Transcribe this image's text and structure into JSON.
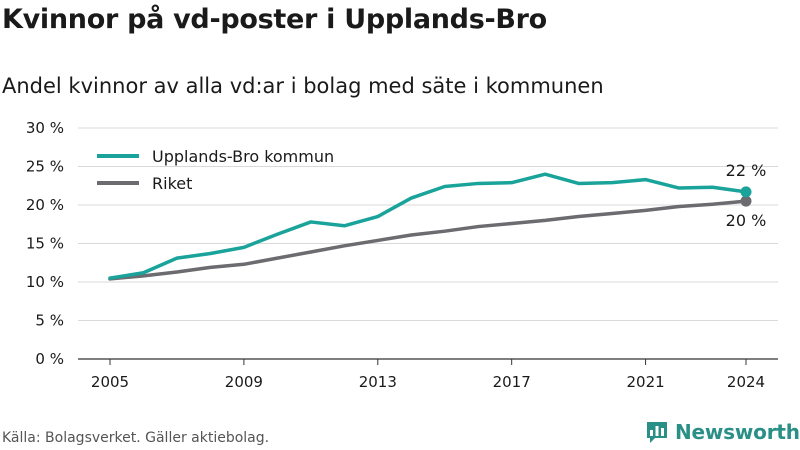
{
  "title": "Kvinnor på vd-poster i Upplands-Bro",
  "subtitle": "Andel kvinnor av alla vd:ar i bolag med säte i kommunen",
  "source": "Källa: Bolagsverket. Gäller aktiebolag.",
  "logo": {
    "text": "Newsworthy",
    "icon": "bar-chart-icon",
    "color": "#2a8f86"
  },
  "chart_data": {
    "type": "line",
    "x": [
      2005,
      2006,
      2007,
      2008,
      2009,
      2010,
      2011,
      2012,
      2013,
      2014,
      2015,
      2016,
      2017,
      2018,
      2019,
      2020,
      2021,
      2022,
      2023,
      2024
    ],
    "series": [
      {
        "name": "Upplands-Bro kommun",
        "color": "#1aa39a",
        "values": [
          10.5,
          11.2,
          13.1,
          13.7,
          14.5,
          16.2,
          17.8,
          17.3,
          18.5,
          20.9,
          22.4,
          22.8,
          22.9,
          24.0,
          22.8,
          22.9,
          23.3,
          22.2,
          22.3,
          21.7
        ]
      },
      {
        "name": "Riket",
        "color": "#6b6b70",
        "values": [
          10.4,
          10.8,
          11.3,
          11.9,
          12.3,
          13.1,
          13.9,
          14.7,
          15.4,
          16.1,
          16.6,
          17.2,
          17.6,
          18.0,
          18.5,
          18.9,
          19.3,
          19.8,
          20.1,
          20.5
        ]
      }
    ],
    "end_labels": [
      "22 %",
      "20 %"
    ],
    "x_ticks": [
      2005,
      2009,
      2013,
      2017,
      2021,
      2024
    ],
    "x_tick_labels": [
      "2005",
      "2009",
      "2013",
      "2017",
      "2021",
      "2024"
    ],
    "y_ticks": [
      0,
      5,
      10,
      15,
      20,
      25,
      30
    ],
    "y_tick_labels": [
      "0 %",
      "5 %",
      "10 %",
      "15 %",
      "20 %",
      "25 %",
      "30 %"
    ],
    "xlim": [
      2005,
      2024
    ],
    "ylim": [
      0,
      30
    ],
    "grid": true,
    "legend_position": "top-left",
    "xlabel": "",
    "ylabel": ""
  }
}
